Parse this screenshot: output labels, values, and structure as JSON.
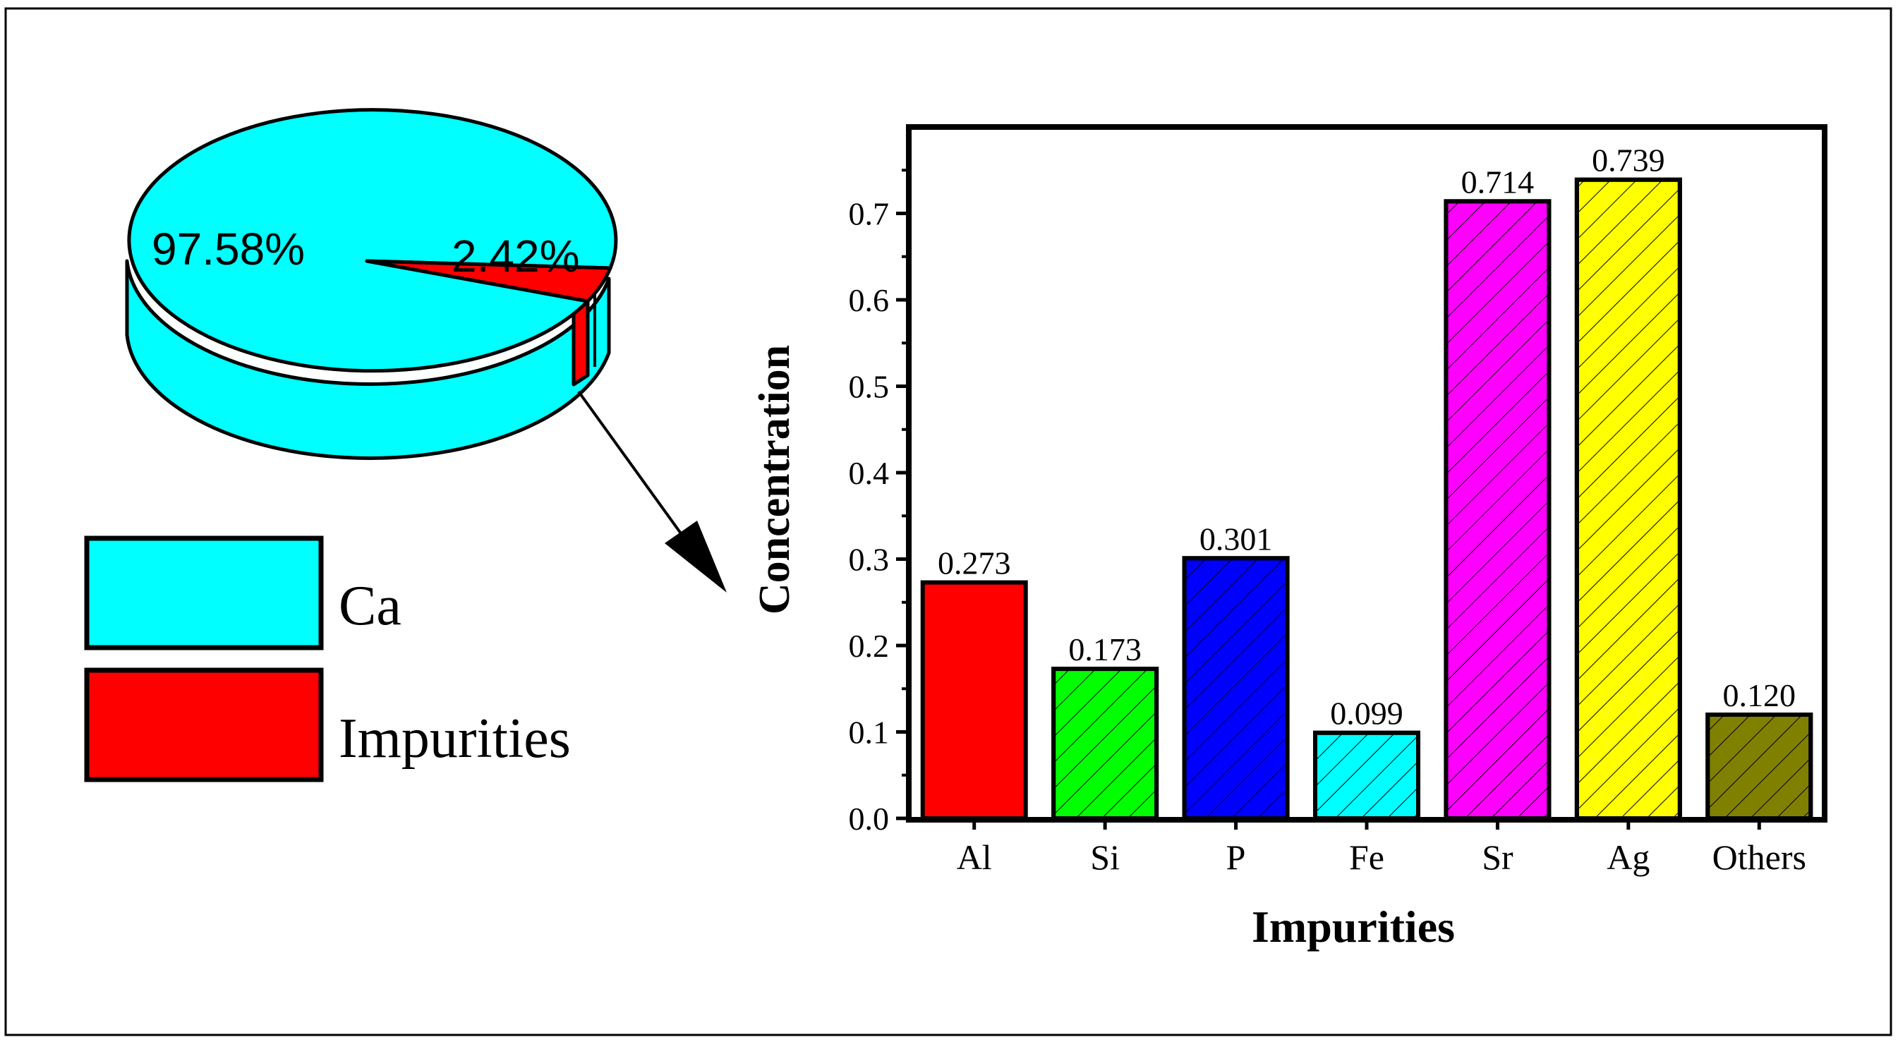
{
  "chart_data": [
    {
      "type": "pie",
      "style": "3d",
      "slices": [
        {
          "name": "Ca",
          "value": 97.58,
          "label": "97.58%",
          "color": "#00FFFF"
        },
        {
          "name": "Impurities",
          "value": 2.42,
          "label": "2.42%",
          "color": "#FF0000"
        }
      ],
      "legend": [
        {
          "label": "Ca",
          "color": "#00FFFF"
        },
        {
          "label": "Impurities",
          "color": "#FF0000"
        }
      ],
      "legend_position": "bottom-left"
    },
    {
      "type": "bar",
      "xlabel": "Impurities",
      "ylabel": "Concentration",
      "ylim": [
        0.0,
        0.8
      ],
      "yticks": [
        "0.0",
        "0.1",
        "0.2",
        "0.3",
        "0.4",
        "0.5",
        "0.6",
        "0.7"
      ],
      "categories": [
        "Al",
        "Si",
        "P",
        "Fe",
        "Sr",
        "Ag",
        "Others"
      ],
      "values": [
        0.273,
        0.173,
        0.301,
        0.099,
        0.714,
        0.739,
        0.12
      ],
      "value_labels": [
        "0.273",
        "0.173",
        "0.301",
        "0.099",
        "0.714",
        "0.739",
        "0.120"
      ],
      "colors": [
        "#FF0000",
        "#00FF00",
        "#0000FF",
        "#00FFFF",
        "#FF00FF",
        "#FFFF00",
        "#808000"
      ],
      "hatched": [
        false,
        true,
        true,
        true,
        true,
        true,
        true
      ]
    }
  ]
}
